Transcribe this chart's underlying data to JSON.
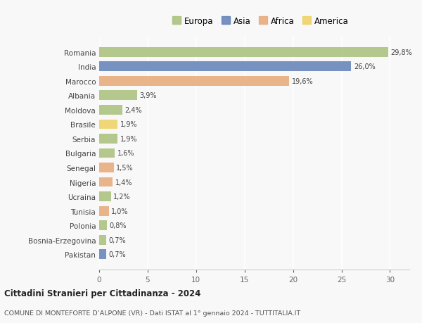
{
  "countries": [
    "Romania",
    "India",
    "Marocco",
    "Albania",
    "Moldova",
    "Brasile",
    "Serbia",
    "Bulgaria",
    "Senegal",
    "Nigeria",
    "Ucraina",
    "Tunisia",
    "Polonia",
    "Bosnia-Erzegovina",
    "Pakistan"
  ],
  "values": [
    29.8,
    26.0,
    19.6,
    3.9,
    2.4,
    1.9,
    1.9,
    1.6,
    1.5,
    1.4,
    1.2,
    1.0,
    0.8,
    0.7,
    0.7
  ],
  "labels": [
    "29,8%",
    "26,0%",
    "19,6%",
    "3,9%",
    "2,4%",
    "1,9%",
    "1,9%",
    "1,6%",
    "1,5%",
    "1,4%",
    "1,2%",
    "1,0%",
    "0,8%",
    "0,7%",
    "0,7%"
  ],
  "continents": [
    "Europa",
    "Asia",
    "Africa",
    "Europa",
    "Europa",
    "America",
    "Europa",
    "Europa",
    "Africa",
    "Africa",
    "Europa",
    "Africa",
    "Europa",
    "Europa",
    "Asia"
  ],
  "colors": {
    "Europa": "#a8c07a",
    "Asia": "#6080b8",
    "Africa": "#e8a878",
    "America": "#f0d060"
  },
  "xlim": [
    0,
    32
  ],
  "xticks": [
    0,
    5,
    10,
    15,
    20,
    25,
    30
  ],
  "title": "Cittadini Stranieri per Cittadinanza - 2024",
  "subtitle": "COMUNE DI MONTEFORTE D’ALPONE (VR) - Dati ISTAT al 1° gennaio 2024 - TUTTITALIA.IT",
  "background_color": "#f8f8f8",
  "grid_color": "#ffffff",
  "bar_height": 0.68,
  "legend_order": [
    "Europa",
    "Asia",
    "Africa",
    "America"
  ]
}
